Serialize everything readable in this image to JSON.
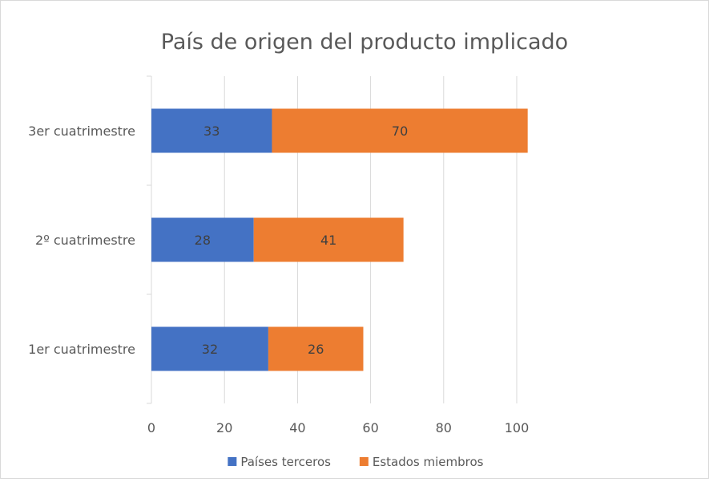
{
  "chart_data": {
    "type": "bar",
    "orientation": "horizontal",
    "stacked": true,
    "title": "País de origen del producto implicado",
    "categories": [
      "1er cuatrimestre",
      "2º cuatrimestre",
      "3er cuatrimestre"
    ],
    "series": [
      {
        "name": "Países terceros",
        "values": [
          32,
          28,
          33
        ],
        "color": "#4472c4"
      },
      {
        "name": "Estados miembros",
        "values": [
          26,
          41,
          70
        ],
        "color": "#ed7d31"
      }
    ],
    "x_ticks": [
      "0",
      "20",
      "40",
      "60",
      "80",
      "100"
    ],
    "xlim": [
      0,
      100
    ],
    "grid": "vertical",
    "legend_position": "bottom",
    "colors": {
      "gridline": "#d9d9d9",
      "axis_text": "#595959",
      "data_label": "#404040",
      "title": "#595959"
    }
  }
}
